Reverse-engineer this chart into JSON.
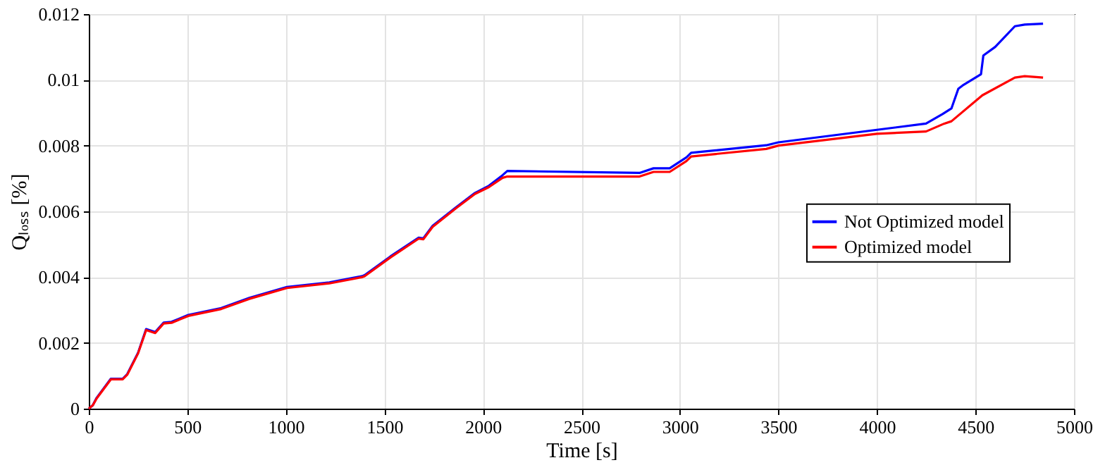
{
  "chart_data": {
    "type": "line",
    "xlabel": "Time [s]",
    "ylabel": "Qₗₒₛₛ [%]",
    "xlim": [
      0,
      5000
    ],
    "ylim": [
      0,
      0.012
    ],
    "xticks": [
      0,
      500,
      1000,
      1500,
      2000,
      2500,
      3000,
      3500,
      4000,
      4500,
      5000
    ],
    "yticks": [
      0,
      0.002,
      0.004,
      0.006,
      0.008,
      0.01,
      0.012
    ],
    "grid": true,
    "legend": "right",
    "line_style": "solid",
    "series": [
      {
        "name": "Not Optimized model",
        "color": "#0000ff",
        "x": [
          0,
          20,
          40,
          112,
          172,
          195,
          250,
          291,
          337,
          380,
          420,
          505,
          672,
          815,
          1006,
          1221,
          1388,
          1400,
          1531,
          1674,
          1698,
          1745,
          1865,
          1960,
          2031,
          2100,
          2124,
          2795,
          2866,
          2948,
          3033,
          3057,
          3438,
          3500,
          4000,
          4249,
          4333,
          4378,
          4413,
          4440,
          4528,
          4540,
          4600,
          4700,
          4750,
          4843
        ],
        "values": [
          0,
          0.0001,
          0.00033,
          0.00091,
          0.00091,
          0.00105,
          0.0017,
          0.00242,
          0.00233,
          0.00262,
          0.00264,
          0.00285,
          0.00306,
          0.00337,
          0.0037,
          0.00384,
          0.00403,
          0.00406,
          0.00463,
          0.0052,
          0.00518,
          0.00556,
          0.00613,
          0.00656,
          0.00678,
          0.0071,
          0.00723,
          0.00717,
          0.00731,
          0.00731,
          0.00764,
          0.00778,
          0.00801,
          0.0081,
          0.00848,
          0.00867,
          0.00896,
          0.00913,
          0.00973,
          0.00985,
          0.01017,
          0.01074,
          0.011,
          0.01163,
          0.01168,
          0.01171
        ]
      },
      {
        "name": "Optimized model",
        "color": "#ff0000",
        "x": [
          0,
          20,
          40,
          112,
          172,
          195,
          250,
          291,
          337,
          380,
          420,
          505,
          672,
          815,
          1006,
          1221,
          1388,
          1400,
          1531,
          1674,
          1698,
          1745,
          1865,
          1960,
          2031,
          2100,
          2124,
          2795,
          2866,
          2948,
          3033,
          3057,
          3438,
          3500,
          4000,
          4249,
          4342,
          4378,
          4535,
          4700,
          4750,
          4843
        ],
        "values": [
          0,
          0.0001,
          0.00031,
          0.00089,
          0.00089,
          0.00103,
          0.00168,
          0.00239,
          0.0023,
          0.00259,
          0.00261,
          0.00282,
          0.00303,
          0.00334,
          0.00367,
          0.00381,
          0.004,
          0.00403,
          0.0046,
          0.00517,
          0.00515,
          0.00553,
          0.0061,
          0.00653,
          0.00674,
          0.00702,
          0.00706,
          0.00706,
          0.0072,
          0.0072,
          0.00753,
          0.00767,
          0.0079,
          0.008,
          0.00836,
          0.00843,
          0.00867,
          0.00874,
          0.00953,
          0.01007,
          0.01011,
          0.01007
        ]
      }
    ]
  }
}
